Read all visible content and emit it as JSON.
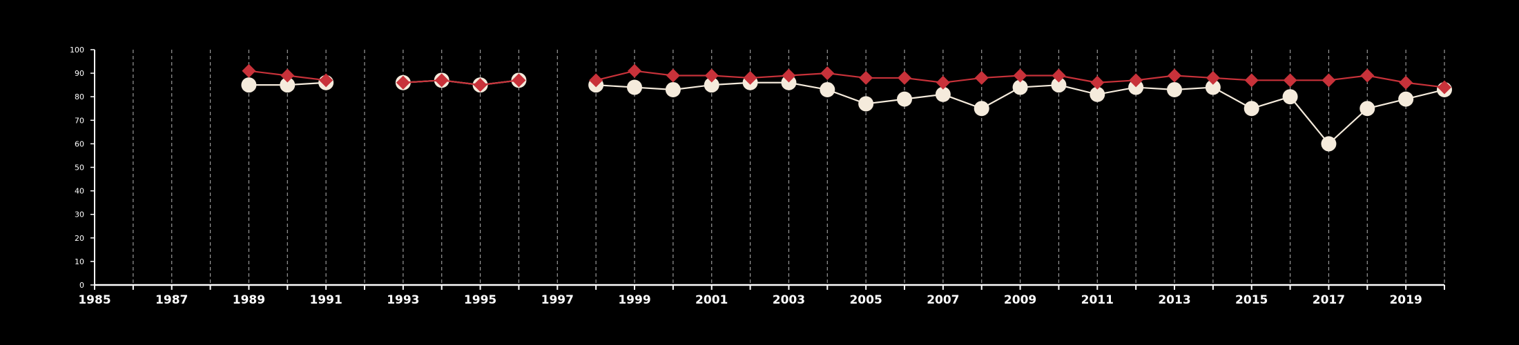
{
  "chart_data": {
    "type": "line",
    "title": "",
    "xlabel": "",
    "ylabel": "",
    "xlim": [
      1985,
      2020
    ],
    "ylim": [
      0,
      100
    ],
    "x_ticks": [
      "1985",
      "1987",
      "1989",
      "1991",
      "1993",
      "1995",
      "1997",
      "1999",
      "2001",
      "2003",
      "2005",
      "2007",
      "2009",
      "2011",
      "2013",
      "2015",
      "2017",
      "2019"
    ],
    "y_ticks": [
      "0",
      "10",
      "20",
      "30",
      "40",
      "50",
      "60",
      "70",
      "80",
      "90",
      "100"
    ],
    "vertical_gridlines": "dashed, every year",
    "legend": "none",
    "series": [
      {
        "marker": "circle",
        "color": "#f5ebdc",
        "points": [
          [
            1989,
            85
          ],
          [
            1990,
            85
          ],
          [
            1991,
            86
          ],
          null,
          [
            1993,
            86
          ],
          [
            1994,
            87
          ],
          [
            1995,
            85
          ],
          [
            1996,
            87
          ],
          null,
          [
            1998,
            85
          ],
          [
            1999,
            84
          ],
          [
            2000,
            83
          ],
          [
            2001,
            85
          ],
          [
            2002,
            86
          ],
          [
            2003,
            86
          ],
          [
            2004,
            83
          ],
          [
            2005,
            77
          ],
          [
            2006,
            79
          ],
          [
            2007,
            81
          ],
          [
            2008,
            75
          ],
          [
            2009,
            84
          ],
          [
            2010,
            85
          ],
          [
            2011,
            81
          ],
          [
            2012,
            84
          ],
          [
            2013,
            83
          ],
          [
            2014,
            84
          ],
          [
            2015,
            75
          ],
          [
            2016,
            80
          ],
          [
            2017,
            60
          ],
          [
            2018,
            75
          ],
          [
            2019,
            79
          ],
          [
            2020,
            83
          ]
        ]
      },
      {
        "marker": "diamond",
        "color": "#c8323a",
        "points": [
          [
            1989,
            91
          ],
          [
            1990,
            89
          ],
          [
            1991,
            87
          ],
          null,
          [
            1993,
            86
          ],
          [
            1994,
            87
          ],
          [
            1995,
            85
          ],
          [
            1996,
            87
          ],
          null,
          [
            1998,
            87
          ],
          [
            1999,
            91
          ],
          [
            2000,
            89
          ],
          [
            2001,
            89
          ],
          [
            2002,
            88
          ],
          [
            2003,
            89
          ],
          [
            2004,
            90
          ],
          [
            2005,
            88
          ],
          [
            2006,
            88
          ],
          [
            2007,
            86
          ],
          [
            2008,
            88
          ],
          [
            2009,
            89
          ],
          [
            2010,
            89
          ],
          [
            2011,
            86
          ],
          [
            2012,
            87
          ],
          [
            2013,
            89
          ],
          [
            2014,
            88
          ],
          [
            2015,
            87
          ],
          [
            2016,
            87
          ],
          [
            2017,
            87
          ],
          [
            2018,
            89
          ],
          [
            2019,
            86
          ],
          [
            2020,
            84
          ]
        ]
      }
    ]
  }
}
